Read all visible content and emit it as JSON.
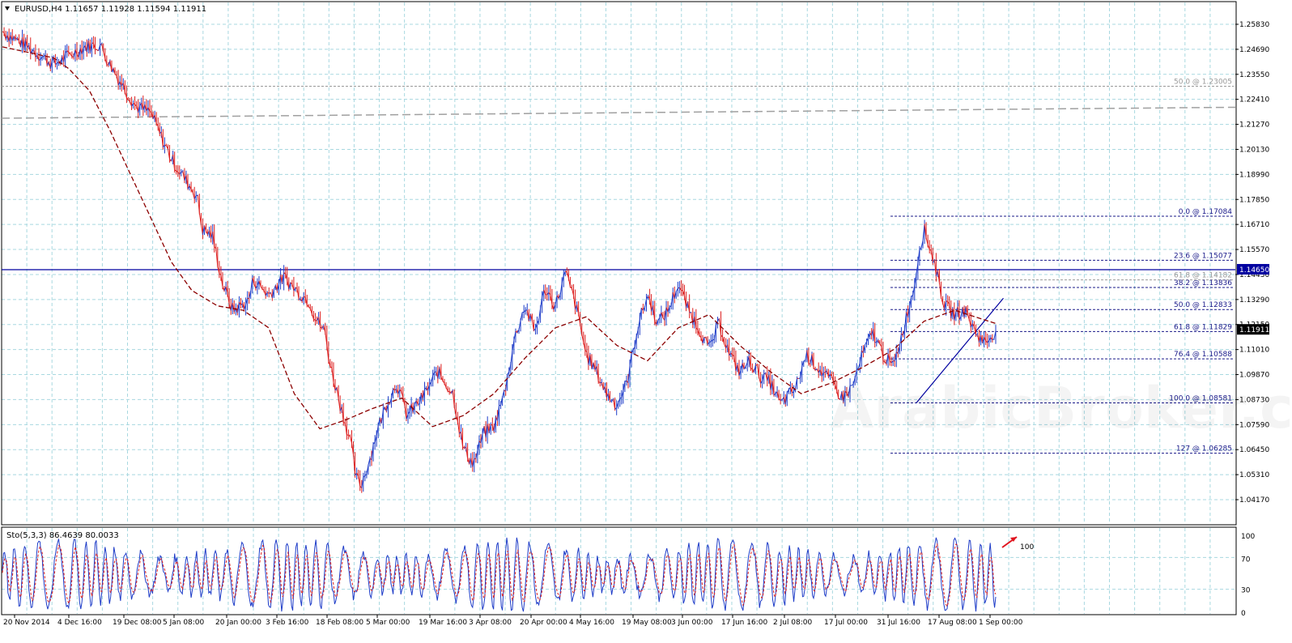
{
  "window": {
    "title": "EURUSD,H4  1.11657 1.11928 1.11594 1.11911",
    "watermark": "ArabicBroker.com"
  },
  "indicator": {
    "label": "Sto(5,3,3) 86.4639 80.0033",
    "levels": [
      "100",
      "70",
      "30",
      "0"
    ]
  },
  "price_axis": {
    "ticks": [
      "1.25830",
      "1.24690",
      "1.23550",
      "1.22410",
      "1.21270",
      "1.20130",
      "1.18990",
      "1.17850",
      "1.16710",
      "1.15570",
      "1.14430",
      "1.13290",
      "1.12150",
      "1.11010",
      "1.09870",
      "1.08730",
      "1.07590",
      "1.06450",
      "1.05310",
      "1.04170"
    ],
    "current_price": "1.11911",
    "resistance_label": "1.14650"
  },
  "time_axis": {
    "labels": [
      "20 Nov 2014",
      "4 Dec 16:00",
      "19 Dec 08:00",
      "5 Jan 08:00",
      "20 Jan 00:00",
      "3 Feb 16:00",
      "18 Feb 08:00",
      "5 Mar 00:00",
      "19 Mar 16:00",
      "3 Apr 08:00",
      "20 Apr 00:00",
      "4 May 16:00",
      "19 May 08:00",
      "3 Jun 00:00",
      "17 Jun 16:00",
      "2 Jul 08:00",
      "17 Jul 00:00",
      "31 Jul 16:00",
      "17 Aug 08:00",
      "1 Sep 00:00"
    ]
  },
  "fibonacci": [
    {
      "label": "0.0 @ 1.17084"
    },
    {
      "label": "23.6 @ 1.15077"
    },
    {
      "label": "61.8 @ 1.14182"
    },
    {
      "label": "38.2 @ 1.13836"
    },
    {
      "label": "50.0 @ 1.12833"
    },
    {
      "label": "61.8 @ 1.11829"
    },
    {
      "label": "76.4 @ 1.10588"
    },
    {
      "label": "100.0 @ 1.08581"
    },
    {
      "label": "127 @ 1.06285"
    },
    {
      "label": "50.0 @ 1.23005"
    }
  ],
  "colors": {
    "grid": "#a8d8e0",
    "bull": "#1e3cc8",
    "bear": "#dc1e1e",
    "ma": "#8c0000",
    "fib": "#1a1a8a",
    "hline": "#0000a0",
    "arrow": "#e0141e"
  },
  "chart_data": [
    {
      "type": "line",
      "series_kind": "candlestick",
      "symbol": "EURUSD",
      "timeframe": "H4",
      "ylim": [
        1.0417,
        1.2583
      ],
      "x": [
        "20 Nov 2014",
        "4 Dec 16:00",
        "19 Dec 08:00",
        "5 Jan 08:00",
        "20 Jan 00:00",
        "3 Feb 16:00",
        "18 Feb 08:00",
        "5 Mar 00:00",
        "19 Mar 16:00",
        "3 Apr 08:00",
        "20 Apr 00:00",
        "4 May 16:00",
        "19 May 08:00",
        "3 Jun 00:00",
        "17 Jun 16:00",
        "2 Jul 08:00",
        "17 Jul 00:00",
        "31 Jul 16:00",
        "17 Aug 08:00",
        "1 Sep 00:00"
      ],
      "path": [
        [
          0,
          1.255
        ],
        [
          5,
          1.248
        ],
        [
          10,
          1.24
        ],
        [
          16,
          1.248
        ],
        [
          19,
          1.249
        ],
        [
          21,
          1.24
        ],
        [
          26,
          1.221
        ],
        [
          29,
          1.218
        ],
        [
          31,
          1.207
        ],
        [
          33,
          1.197
        ],
        [
          35,
          1.19
        ],
        [
          38,
          1.18
        ],
        [
          39,
          1.165
        ],
        [
          41,
          1.162
        ],
        [
          43,
          1.14
        ],
        [
          45,
          1.128
        ],
        [
          48,
          1.132
        ],
        [
          49,
          1.142
        ],
        [
          52,
          1.135
        ],
        [
          55,
          1.143
        ],
        [
          57,
          1.138
        ],
        [
          60,
          1.132
        ],
        [
          61,
          1.125
        ],
        [
          63,
          1.118
        ],
        [
          64,
          1.103
        ],
        [
          66,
          1.085
        ],
        [
          68,
          1.068
        ],
        [
          69,
          1.052
        ],
        [
          70,
          1.048
        ],
        [
          72,
          1.062
        ],
        [
          73,
          1.072
        ],
        [
          75,
          1.085
        ],
        [
          77,
          1.095
        ],
        [
          79,
          1.08
        ],
        [
          82,
          1.088
        ],
        [
          85,
          1.1
        ],
        [
          88,
          1.09
        ],
        [
          90,
          1.065
        ],
        [
          92,
          1.058
        ],
        [
          94,
          1.072
        ],
        [
          96,
          1.075
        ],
        [
          98,
          1.09
        ],
        [
          100,
          1.115
        ],
        [
          102,
          1.13
        ],
        [
          104,
          1.118
        ],
        [
          106,
          1.138
        ],
        [
          108,
          1.13
        ],
        [
          110,
          1.145
        ],
        [
          112,
          1.13
        ],
        [
          114,
          1.108
        ],
        [
          116,
          1.1
        ],
        [
          118,
          1.09
        ],
        [
          120,
          1.085
        ],
        [
          122,
          1.095
        ],
        [
          124,
          1.12
        ],
        [
          126,
          1.135
        ],
        [
          128,
          1.122
        ],
        [
          130,
          1.128
        ],
        [
          132,
          1.14
        ],
        [
          134,
          1.128
        ],
        [
          136,
          1.12
        ],
        [
          138,
          1.11
        ],
        [
          140,
          1.122
        ],
        [
          142,
          1.108
        ],
        [
          144,
          1.1
        ],
        [
          146,
          1.105
        ],
        [
          148,
          1.098
        ],
        [
          150,
          1.095
        ],
        [
          152,
          1.085
        ],
        [
          155,
          1.093
        ],
        [
          157,
          1.108
        ],
        [
          160,
          1.1
        ],
        [
          162,
          1.095
        ],
        [
          164,
          1.088
        ],
        [
          166,
          1.093
        ],
        [
          168,
          1.108
        ],
        [
          170,
          1.118
        ],
        [
          172,
          1.108
        ],
        [
          174,
          1.102
        ],
        [
          176,
          1.12
        ],
        [
          178,
          1.138
        ],
        [
          179,
          1.155
        ],
        [
          180,
          1.165
        ],
        [
          182,
          1.15
        ],
        [
          184,
          1.13
        ],
        [
          186,
          1.126
        ],
        [
          188,
          1.128
        ],
        [
          190,
          1.118
        ],
        [
          192,
          1.113
        ],
        [
          194,
          1.119
        ]
      ],
      "moving_average_path": [
        [
          0,
          1.248
        ],
        [
          6,
          1.245
        ],
        [
          10,
          1.243
        ],
        [
          13,
          1.238
        ],
        [
          17,
          1.228
        ],
        [
          21,
          1.21
        ],
        [
          25,
          1.19
        ],
        [
          29,
          1.17
        ],
        [
          33,
          1.15
        ],
        [
          37,
          1.137
        ],
        [
          42,
          1.13
        ],
        [
          47,
          1.128
        ],
        [
          52,
          1.12
        ],
        [
          57,
          1.09
        ],
        [
          62,
          1.074
        ],
        [
          67,
          1.078
        ],
        [
          72,
          1.083
        ],
        [
          78,
          1.088
        ],
        [
          84,
          1.075
        ],
        [
          90,
          1.08
        ],
        [
          96,
          1.09
        ],
        [
          102,
          1.106
        ],
        [
          108,
          1.12
        ],
        [
          114,
          1.125
        ],
        [
          120,
          1.112
        ],
        [
          126,
          1.105
        ],
        [
          132,
          1.12
        ],
        [
          138,
          1.126
        ],
        [
          144,
          1.112
        ],
        [
          150,
          1.1
        ],
        [
          156,
          1.09
        ],
        [
          162,
          1.095
        ],
        [
          168,
          1.102
        ],
        [
          174,
          1.11
        ],
        [
          180,
          1.123
        ],
        [
          186,
          1.128
        ],
        [
          190,
          1.125
        ],
        [
          194,
          1.122
        ]
      ],
      "dashed_gray_line": [
        1.2155,
        1.2205
      ],
      "horizontal_line": 1.1465,
      "trendline": {
        "from": [
          1.08581,
          "31 Jul 16:00"
        ],
        "to": [
          1.1335,
          "1 Sep 00:00"
        ]
      },
      "fibonacci_levels": [
        {
          "ratio": 0.0,
          "price": 1.17084
        },
        {
          "ratio": 23.6,
          "price": 1.15077
        },
        {
          "ratio": 61.8,
          "price": 1.14182
        },
        {
          "ratio": 38.2,
          "price": 1.13836
        },
        {
          "ratio": 50.0,
          "price": 1.12833
        },
        {
          "ratio": 61.8,
          "price": 1.11829
        },
        {
          "ratio": 76.4,
          "price": 1.10588
        },
        {
          "ratio": 100.0,
          "price": 1.08581
        },
        {
          "ratio": 127,
          "price": 1.06285
        },
        {
          "ratio": 50.0,
          "price": 1.23005
        }
      ]
    },
    {
      "type": "line",
      "title": "Sto(5,3,3)",
      "ylim": [
        0,
        100
      ],
      "levels": [
        70,
        30
      ],
      "last_values": [
        86.4639,
        80.0033
      ]
    }
  ]
}
